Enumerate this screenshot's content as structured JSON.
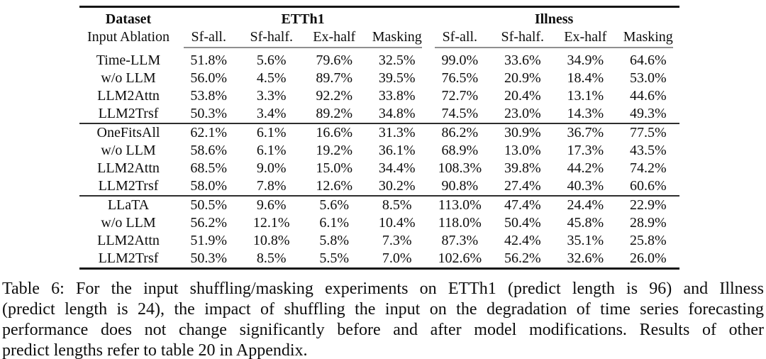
{
  "table": {
    "header": {
      "dataset_label": "Dataset",
      "row_label": "Input Ablation",
      "groups": [
        "ETTh1",
        "Illness"
      ],
      "columns": [
        "Sf-all.",
        "Sf-half.",
        "Ex-half",
        "Masking",
        "Sf-all.",
        "Sf-half.",
        "Ex-half",
        "Masking"
      ]
    },
    "groups": [
      {
        "rows": [
          {
            "label": "Time-LLM",
            "bold": false,
            "values": [
              "51.8%",
              "5.6%",
              "79.6%",
              "32.5%",
              "99.0%",
              "33.6%",
              "34.9%",
              "64.6%"
            ]
          },
          {
            "label": "w/o LLM",
            "bold": true,
            "values": [
              "56.0%",
              "4.5%",
              "89.7%",
              "39.5%",
              "76.5%",
              "20.9%",
              "18.4%",
              "53.0%"
            ]
          },
          {
            "label": "LLM2Attn",
            "bold": true,
            "values": [
              "53.8%",
              "3.3%",
              "92.2%",
              "33.8%",
              "72.7%",
              "20.4%",
              "13.1%",
              "44.6%"
            ]
          },
          {
            "label": "LLM2Trsf",
            "bold": true,
            "values": [
              "50.3%",
              "3.4%",
              "89.2%",
              "34.8%",
              "74.5%",
              "23.0%",
              "14.3%",
              "49.3%"
            ]
          }
        ]
      },
      {
        "rows": [
          {
            "label": "OneFitsAll",
            "bold": false,
            "values": [
              "62.1%",
              "6.1%",
              "16.6%",
              "31.3%",
              "86.2%",
              "30.9%",
              "36.7%",
              "77.5%"
            ]
          },
          {
            "label": "w/o LLM",
            "bold": true,
            "values": [
              "58.6%",
              "6.1%",
              "19.2%",
              "36.1%",
              "68.9%",
              "13.0%",
              "17.3%",
              "43.5%"
            ]
          },
          {
            "label": "LLM2Attn",
            "bold": true,
            "values": [
              "68.5%",
              "9.0%",
              "15.0%",
              "34.4%",
              "108.3%",
              "39.8%",
              "44.2%",
              "74.2%"
            ]
          },
          {
            "label": "LLM2Trsf",
            "bold": true,
            "values": [
              "58.0%",
              "7.8%",
              "12.6%",
              "30.2%",
              "90.8%",
              "27.4%",
              "40.3%",
              "60.6%"
            ]
          }
        ]
      },
      {
        "rows": [
          {
            "label": "LLaTA",
            "bold": false,
            "values": [
              "50.5%",
              "9.6%",
              "5.6%",
              "8.5%",
              "113.0%",
              "47.4%",
              "24.4%",
              "22.9%"
            ]
          },
          {
            "label": "w/o LLM",
            "bold": true,
            "values": [
              "56.2%",
              "12.1%",
              "6.1%",
              "10.4%",
              "118.0%",
              "50.4%",
              "45.8%",
              "28.9%"
            ]
          },
          {
            "label": "LLM2Attn",
            "bold": true,
            "values": [
              "51.9%",
              "10.8%",
              "5.8%",
              "7.3%",
              "87.3%",
              "42.4%",
              "35.1%",
              "25.8%"
            ]
          },
          {
            "label": "LLM2Trsf",
            "bold": true,
            "values": [
              "50.3%",
              "8.5%",
              "5.5%",
              "7.0%",
              "102.6%",
              "56.2%",
              "32.6%",
              "26.0%"
            ]
          }
        ]
      }
    ]
  },
  "caption": {
    "label": "Table 6:",
    "lines": [
      "Table 6: For the input shuffling/masking experiments on ETTh1 (predict length is 96) and Illness",
      "(predict length is 24), the impact of shuffling the input on the degradation of time series forecasting",
      "performance does not change significantly before and after model modifications. Results of other",
      "predict lengths refer to table 20 in Appendix."
    ]
  },
  "colors": {
    "heavy_rule": "#151515",
    "mid_rule": "#2e2e2e",
    "light_rule": "#8f8f8f",
    "text": "#0d0d0d",
    "background": "#ffffff"
  }
}
